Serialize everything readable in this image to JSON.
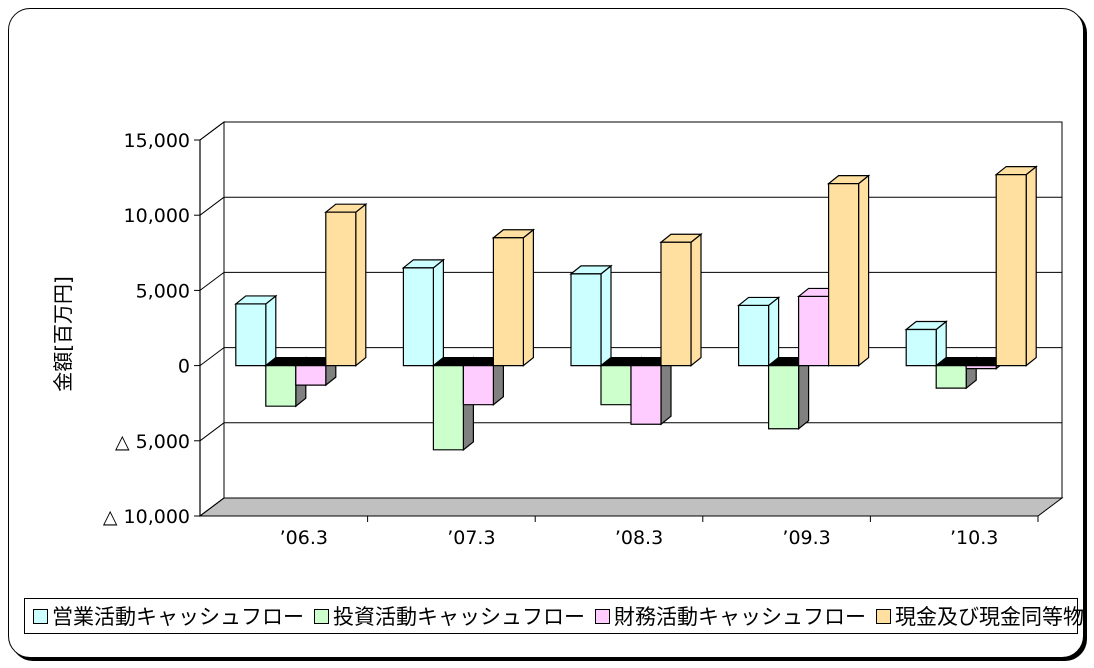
{
  "chart_data": {
    "type": "bar",
    "ylabel": "金額[百万円]",
    "categories": [
      "’06.3",
      "’07.3",
      "’08.3",
      "’09.3",
      "’10.3"
    ],
    "ylim": [
      -10000,
      15000
    ],
    "yticks": [
      15000,
      10000,
      5000,
      0,
      -5000,
      -10000
    ],
    "ytick_labels": [
      "15,000",
      "10,000",
      "5,000",
      "0",
      "△ 5,000",
      "△ 10,000"
    ],
    "grid": true,
    "legend_position": "bottom",
    "series": [
      {
        "name": "営業活動キャッシュフロー",
        "color": "#ccffff",
        "values": [
          4100,
          6500,
          6100,
          4000,
          2400
        ]
      },
      {
        "name": "投資活動キャッシュフロー",
        "color": "#ccffcc",
        "values": [
          -2700,
          -5600,
          -2600,
          -4200,
          -1500
        ]
      },
      {
        "name": "財務活動キャッシュフロー",
        "color": "#ffccff",
        "values": [
          -1300,
          -2600,
          -3900,
          4600,
          -200
        ]
      },
      {
        "name": "現金及び現金同等物",
        "color": "#ffe0a0",
        "values": [
          10200,
          8500,
          8200,
          12100,
          12700
        ]
      }
    ]
  }
}
